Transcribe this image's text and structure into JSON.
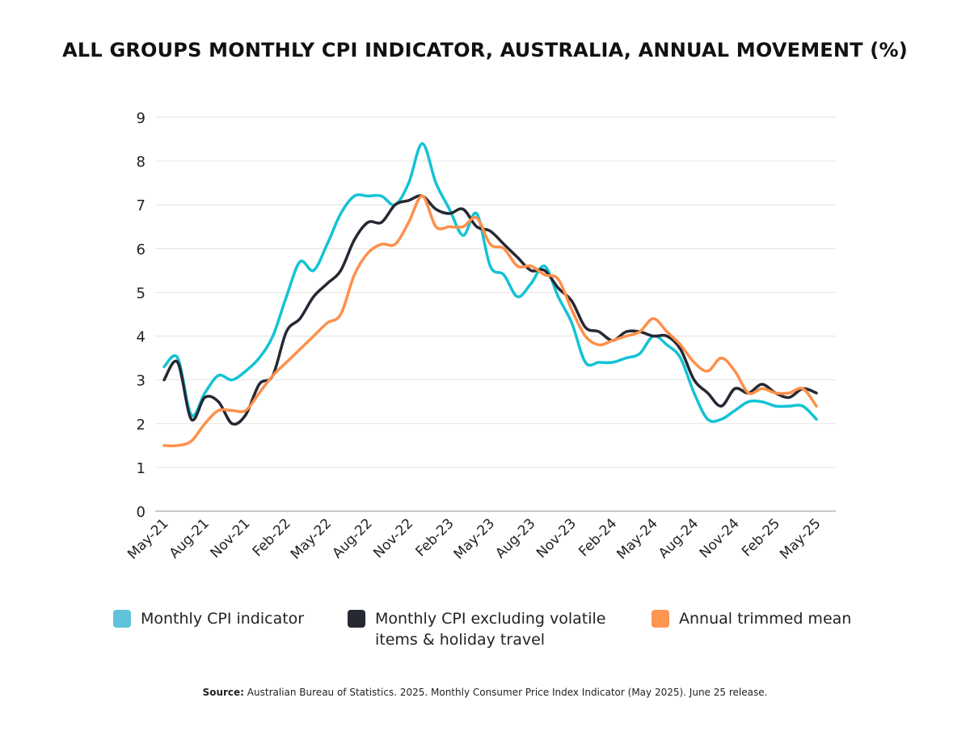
{
  "chart_data": {
    "type": "line",
    "title": "ALL GROUPS MONTHLY CPI INDICATOR, AUSTRALIA, ANNUAL MOVEMENT (%)",
    "xlabel": "",
    "ylabel": "",
    "ylim": [
      0,
      9
    ],
    "yticks": [
      "0",
      "1",
      "2",
      "3",
      "4",
      "5",
      "6",
      "7",
      "8",
      "9"
    ],
    "grid": true,
    "legend_position": "bottom",
    "xtick_labels": [
      "May-21",
      "Aug-21",
      "Nov-21",
      "Feb-22",
      "May-22",
      "Aug-22",
      "Nov-22",
      "Feb-23",
      "May-23",
      "Aug-23",
      "Nov-23",
      "Feb-24",
      "May-24",
      "Aug-24",
      "Nov-24",
      "Feb-25",
      "May-25"
    ],
    "x": [
      "May-21",
      "Jun-21",
      "Jul-21",
      "Aug-21",
      "Sep-21",
      "Oct-21",
      "Nov-21",
      "Dec-21",
      "Jan-22",
      "Feb-22",
      "Mar-22",
      "Apr-22",
      "May-22",
      "Jun-22",
      "Jul-22",
      "Aug-22",
      "Sep-22",
      "Oct-22",
      "Nov-22",
      "Dec-22",
      "Jan-23",
      "Feb-23",
      "Mar-23",
      "Apr-23",
      "May-23",
      "Jun-23",
      "Jul-23",
      "Aug-23",
      "Sep-23",
      "Oct-23",
      "Nov-23",
      "Dec-23",
      "Jan-24",
      "Feb-24",
      "Mar-24",
      "Apr-24",
      "May-24",
      "Jun-24",
      "Jul-24",
      "Aug-24",
      "Sep-24",
      "Oct-24",
      "Nov-24",
      "Dec-24",
      "Jan-25",
      "Feb-25",
      "Mar-25",
      "Apr-25",
      "May-25"
    ],
    "series": [
      {
        "name": "Monthly CPI indicator",
        "color": "#12c3d4",
        "legend_color": "#5ec3d8",
        "values": [
          3.3,
          3.5,
          2.2,
          2.7,
          3.1,
          3.0,
          3.2,
          3.5,
          4.0,
          4.9,
          5.7,
          5.5,
          6.1,
          6.8,
          7.2,
          7.2,
          7.2,
          7.0,
          7.5,
          8.4,
          7.5,
          6.9,
          6.3,
          6.8,
          5.6,
          5.4,
          4.9,
          5.2,
          5.6,
          4.9,
          4.3,
          3.4,
          3.4,
          3.4,
          3.5,
          3.6,
          4.0,
          3.8,
          3.5,
          2.7,
          2.1,
          2.1,
          2.3,
          2.5,
          2.5,
          2.4,
          2.4,
          2.4,
          2.1
        ]
      },
      {
        "name": "Monthly CPI excluding volatile items & holiday travel",
        "color": "#262833",
        "legend_color": "#262833",
        "values": [
          3.0,
          3.4,
          2.1,
          2.6,
          2.5,
          2.0,
          2.2,
          2.9,
          3.1,
          4.1,
          4.4,
          4.9,
          5.2,
          5.5,
          6.2,
          6.6,
          6.6,
          7.0,
          7.1,
          7.2,
          6.9,
          6.8,
          6.9,
          6.5,
          6.4,
          6.1,
          5.8,
          5.5,
          5.5,
          5.1,
          4.8,
          4.2,
          4.1,
          3.9,
          4.1,
          4.1,
          4.0,
          4.0,
          3.7,
          3.0,
          2.7,
          2.4,
          2.8,
          2.7,
          2.9,
          2.7,
          2.6,
          2.8,
          2.7
        ]
      },
      {
        "name": "Annual trimmed mean",
        "color": "#ff8f4a",
        "legend_color": "#ff9550",
        "values": [
          1.5,
          1.5,
          1.6,
          2.0,
          2.3,
          2.3,
          2.3,
          2.7,
          3.1,
          3.4,
          3.7,
          4.0,
          4.3,
          4.5,
          5.4,
          5.9,
          6.1,
          6.1,
          6.6,
          7.2,
          6.5,
          6.5,
          6.5,
          6.7,
          6.1,
          6.0,
          5.6,
          5.6,
          5.4,
          5.3,
          4.6,
          4.0,
          3.8,
          3.9,
          4.0,
          4.1,
          4.4,
          4.1,
          3.8,
          3.4,
          3.2,
          3.5,
          3.2,
          2.7,
          2.8,
          2.7,
          2.7,
          2.8,
          2.4
        ]
      }
    ]
  },
  "legend": {
    "item1": "Monthly CPI indicator",
    "item2_line1": "Monthly CPI excluding volatile",
    "item2_line2": "items & holiday travel",
    "item3": "Annual trimmed mean"
  },
  "source": {
    "label": "Source:",
    "text": " Australian Bureau of Statistics. 2025. Monthly Consumer Price Index Indicator (May 2025). June 25 release."
  }
}
